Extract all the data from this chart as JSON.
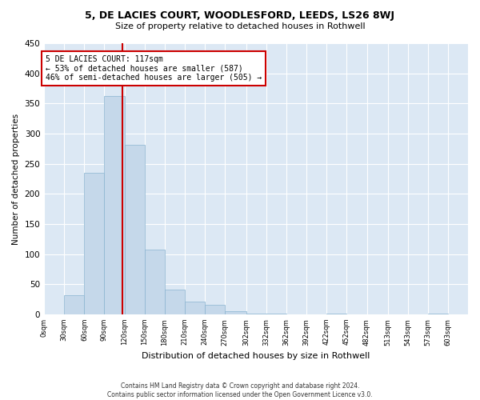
{
  "title1": "5, DE LACIES COURT, WOODLESFORD, LEEDS, LS26 8WJ",
  "title2": "Size of property relative to detached houses in Rothwell",
  "xlabel": "Distribution of detached houses by size in Rothwell",
  "ylabel": "Number of detached properties",
  "footer": "Contains HM Land Registry data © Crown copyright and database right 2024.\nContains public sector information licensed under the Open Government Licence v3.0.",
  "annotation_line1": "5 DE LACIES COURT: 117sqm",
  "annotation_line2": "← 53% of detached houses are smaller (587)",
  "annotation_line3": "46% of semi-detached houses are larger (505) →",
  "property_size": 117,
  "bin_starts": [
    0,
    30,
    60,
    90,
    120,
    150,
    180,
    210,
    240,
    270,
    302,
    332,
    362,
    392,
    422,
    452,
    482,
    513,
    543,
    573,
    603
  ],
  "bar_heights": [
    0,
    32,
    235,
    363,
    281,
    107,
    41,
    21,
    16,
    5,
    1,
    1,
    0,
    0,
    1,
    0,
    0,
    0,
    0,
    1,
    0
  ],
  "bar_color": "#c5d8ea",
  "bar_edge_color": "#8ab4d0",
  "vline_color": "#cc0000",
  "vline_x": 117,
  "annotation_box_color": "#cc0000",
  "background_color": "#dce8f4",
  "grid_color": "#ffffff",
  "fig_background": "#ffffff",
  "ylim": [
    0,
    450
  ],
  "yticks": [
    0,
    50,
    100,
    150,
    200,
    250,
    300,
    350,
    400,
    450
  ],
  "xlim_max": 633
}
